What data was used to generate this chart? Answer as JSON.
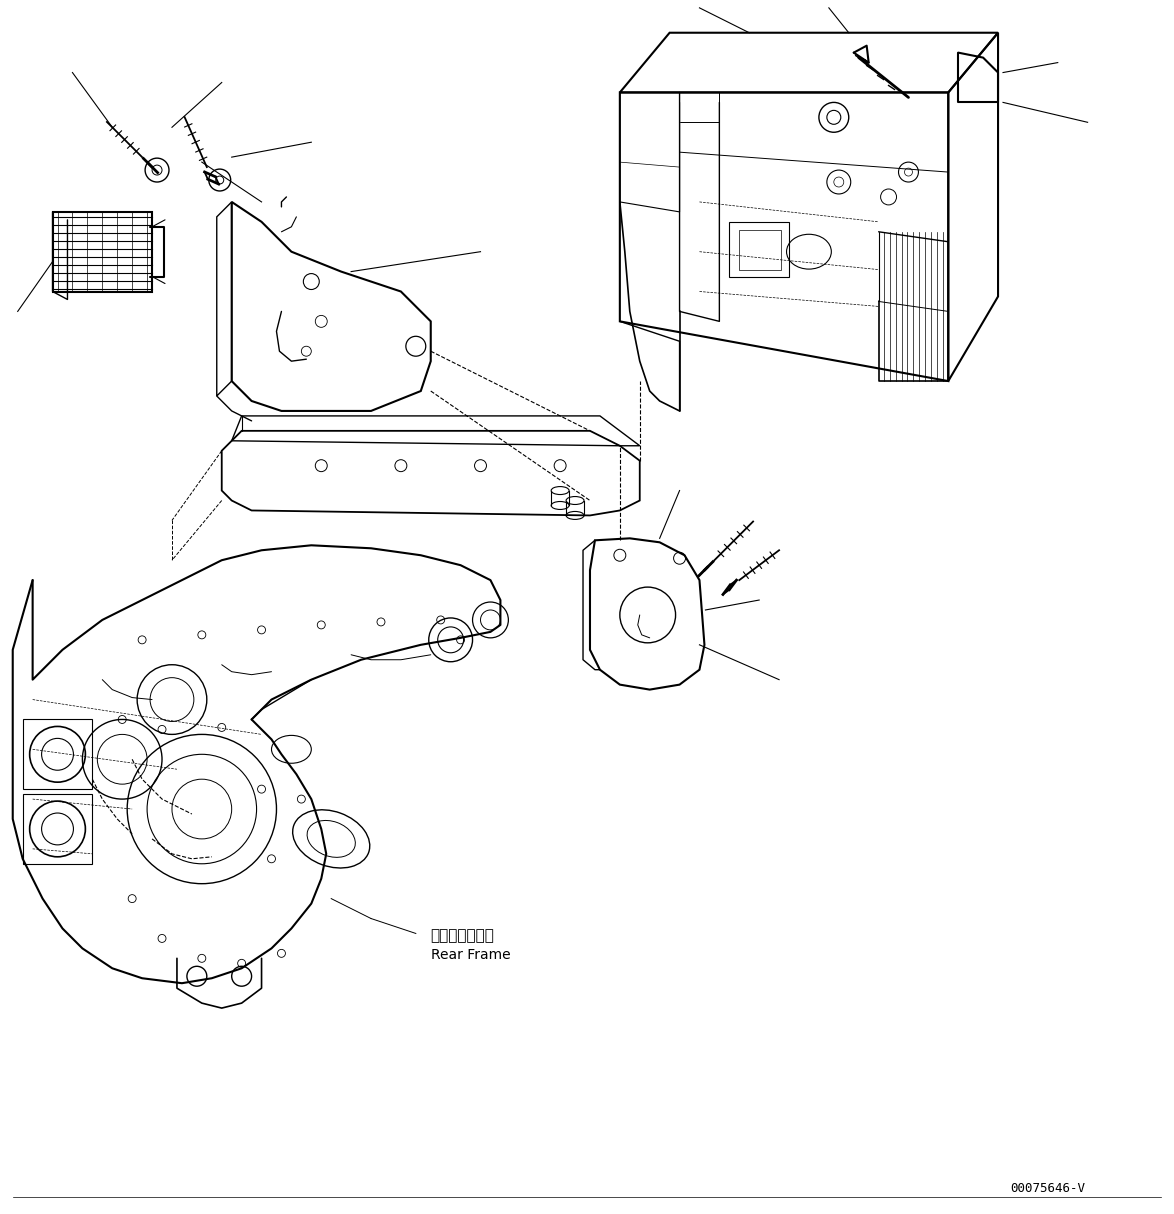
{
  "figure_width": 11.74,
  "figure_height": 12.14,
  "dpi": 100,
  "bg_color": "#ffffff",
  "line_color": "#000000",
  "part_number_text": "00075646-V",
  "label_rear_frame_jp": "リヤーフレーム",
  "label_rear_frame_en": "Rear Frame"
}
